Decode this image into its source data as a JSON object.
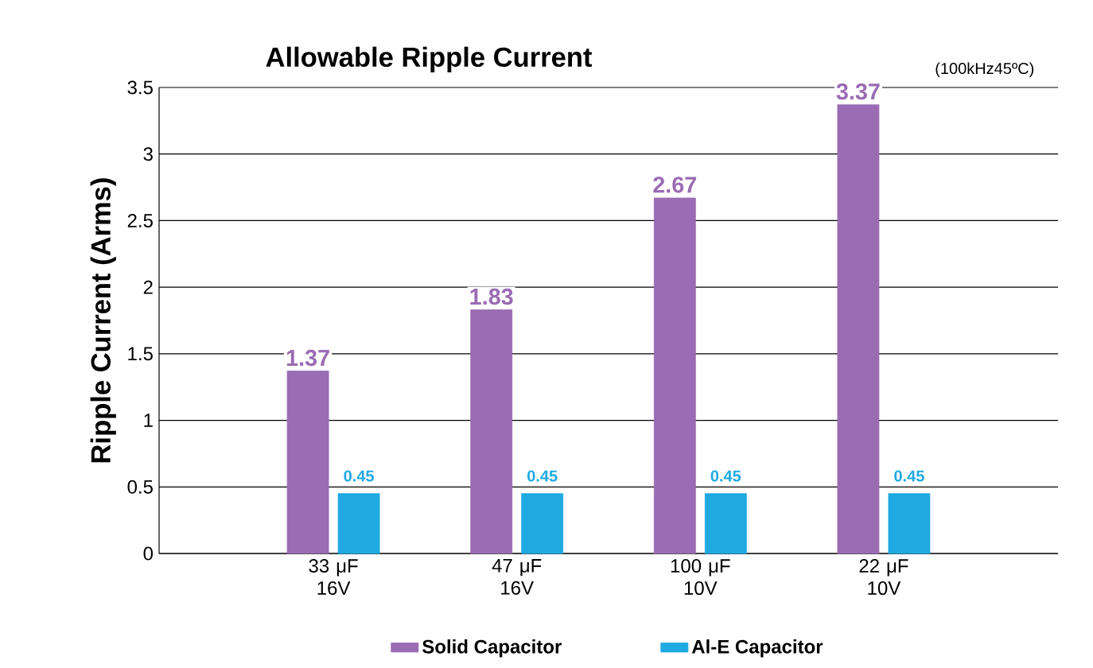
{
  "chart_data": {
    "type": "bar",
    "title": "Allowable Ripple Current",
    "annotations": [
      "(100kHz45ºC)"
    ],
    "ylabel": "Ripple Current (Arms)",
    "categories": [
      "33 μF 16V",
      "47 μF 16V",
      "100 μF 10V",
      "22 μF 10V"
    ],
    "series": [
      {
        "name": "Solid Capacitor",
        "color": "#9a6cb4",
        "values": [
          1.37,
          1.83,
          2.67,
          3.37
        ]
      },
      {
        "name": "Al-E Capacitor",
        "color": "#1ea9e1",
        "values": [
          0.45,
          0.45,
          0.45,
          0.45
        ]
      }
    ],
    "ylim": [
      0,
      3.5
    ],
    "yticks": [
      0,
      0.5,
      1,
      1.5,
      2,
      2.5,
      3,
      3.5
    ],
    "grid": "y",
    "legend": "bottom",
    "data_labels": true
  }
}
